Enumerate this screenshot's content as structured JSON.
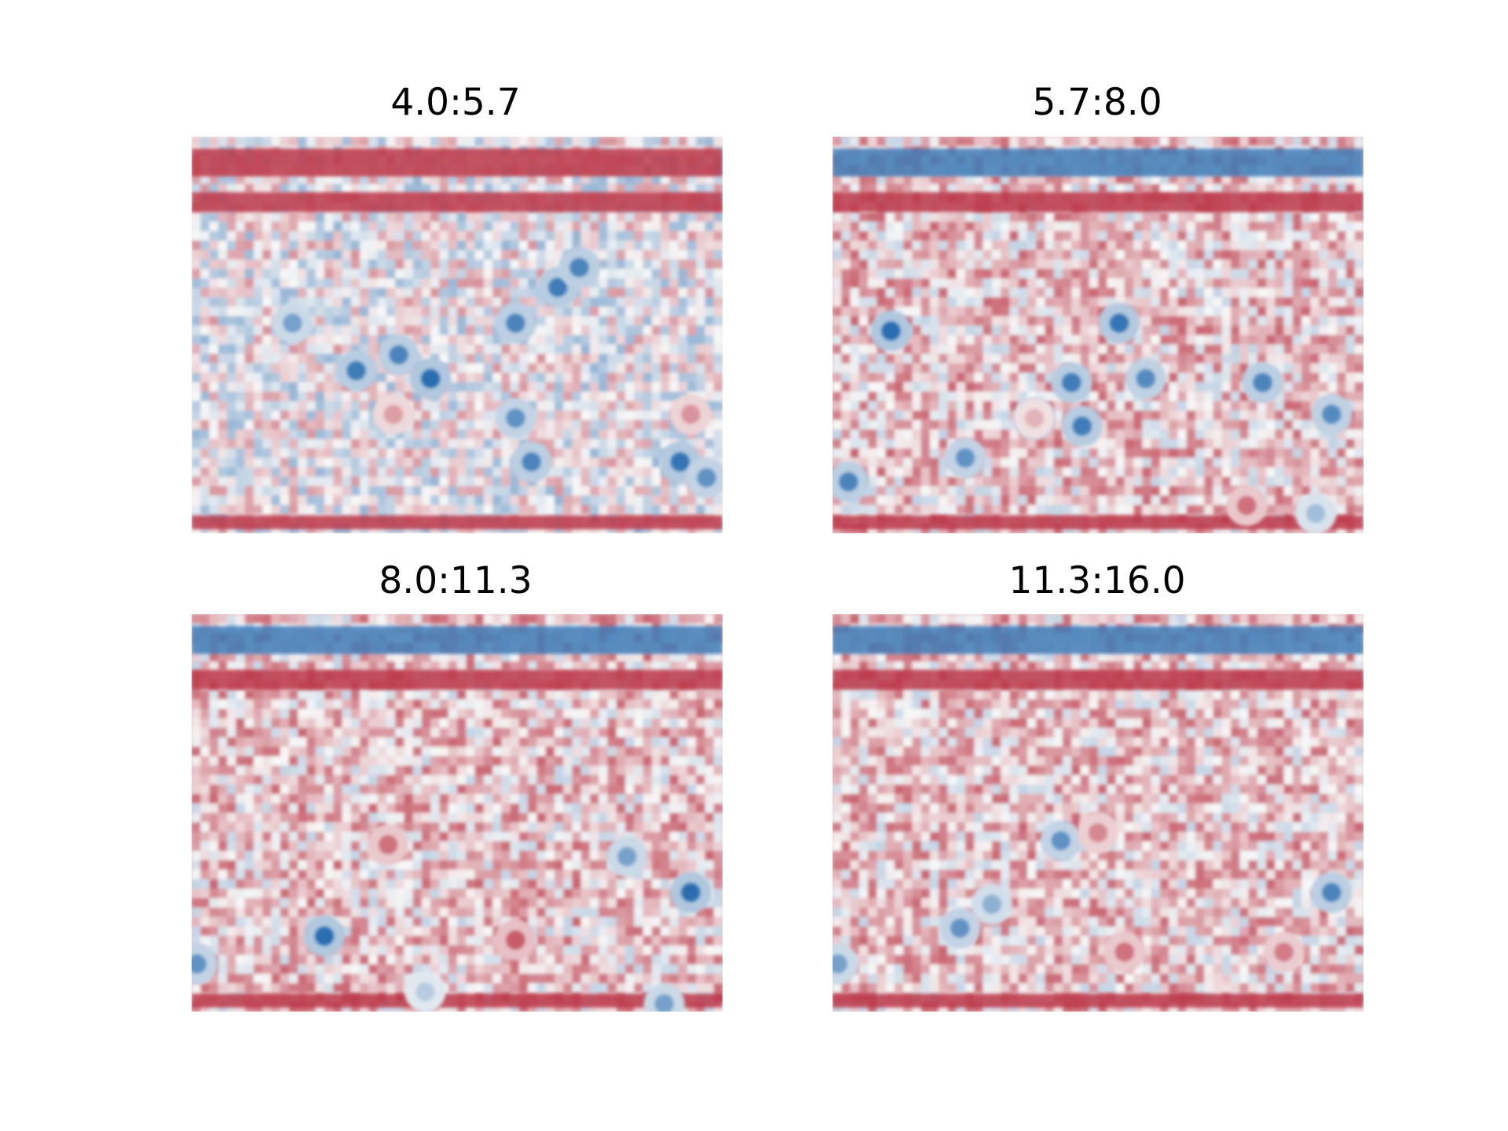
{
  "chart_data": [
    {
      "type": "heatmap",
      "title": "4.0:5.7",
      "colormap": "RdBu_r",
      "axes_visible": false,
      "grid": false,
      "colors": {
        "high": "#b2182b",
        "mid": "#f7f7f7",
        "low": "#2166ac"
      },
      "pattern": {
        "top_band": "red",
        "second_band": "red",
        "bottom_band": "red",
        "spots": [
          {
            "u": 0.31,
            "v": 0.59,
            "value": -0.85
          },
          {
            "u": 0.39,
            "v": 0.55,
            "value": -0.8
          },
          {
            "u": 0.45,
            "v": 0.61,
            "value": -0.95
          },
          {
            "u": 0.61,
            "v": 0.47,
            "value": -0.8
          },
          {
            "u": 0.69,
            "v": 0.38,
            "value": -0.85
          },
          {
            "u": 0.73,
            "v": 0.33,
            "value": -0.8
          },
          {
            "u": 0.61,
            "v": 0.71,
            "value": -0.7
          },
          {
            "u": 0.92,
            "v": 0.82,
            "value": -0.9
          },
          {
            "u": 0.19,
            "v": 0.47,
            "value": -0.6
          },
          {
            "u": 0.64,
            "v": 0.82,
            "value": -0.8
          },
          {
            "u": 0.97,
            "v": 0.86,
            "value": -0.7
          },
          {
            "u": 0.38,
            "v": 0.7,
            "value": 0.4
          },
          {
            "u": 0.94,
            "v": 0.7,
            "value": 0.45
          }
        ]
      }
    },
    {
      "type": "heatmap",
      "title": "5.7:8.0",
      "colormap": "RdBu_r",
      "axes_visible": false,
      "grid": false,
      "colors": {
        "high": "#b2182b",
        "mid": "#f7f7f7",
        "low": "#2166ac"
      },
      "pattern": {
        "top_band": "blue",
        "second_band": "red",
        "bottom_band": "red",
        "spots": [
          {
            "u": 0.11,
            "v": 0.49,
            "value": -0.95
          },
          {
            "u": 0.38,
            "v": 0.71,
            "value": -1.0
          },
          {
            "u": 0.45,
            "v": 0.62,
            "value": -0.85
          },
          {
            "u": 0.47,
            "v": 0.73,
            "value": -0.85
          },
          {
            "u": 0.54,
            "v": 0.47,
            "value": -0.9
          },
          {
            "u": 0.59,
            "v": 0.61,
            "value": -0.75
          },
          {
            "u": 0.81,
            "v": 0.62,
            "value": -0.8
          },
          {
            "u": 0.94,
            "v": 0.7,
            "value": -0.75
          },
          {
            "u": 0.25,
            "v": 0.81,
            "value": -0.7
          },
          {
            "u": 0.03,
            "v": 0.87,
            "value": -0.8
          },
          {
            "u": 0.91,
            "v": 0.95,
            "value": -0.4
          },
          {
            "u": 0.38,
            "v": 0.71,
            "value": 0.3
          },
          {
            "u": 0.78,
            "v": 0.93,
            "value": 0.6
          }
        ]
      }
    },
    {
      "type": "heatmap",
      "title": "8.0:11.3",
      "colormap": "RdBu_r",
      "axes_visible": false,
      "grid": false,
      "colors": {
        "high": "#b2182b",
        "mid": "#f7f7f7",
        "low": "#2166ac"
      },
      "pattern": {
        "top_band": "blue",
        "second_band": "red",
        "bottom_band": "red",
        "spots": [
          {
            "u": 0.25,
            "v": 0.81,
            "value": -0.95
          },
          {
            "u": 0.94,
            "v": 0.7,
            "value": -0.95
          },
          {
            "u": 0.82,
            "v": 0.61,
            "value": -0.6
          },
          {
            "u": 0.01,
            "v": 0.88,
            "value": -0.7
          },
          {
            "u": 0.44,
            "v": 0.95,
            "value": -0.3
          },
          {
            "u": 0.89,
            "v": 0.98,
            "value": -0.6
          },
          {
            "u": 0.37,
            "v": 0.58,
            "value": 0.6
          },
          {
            "u": 0.61,
            "v": 0.82,
            "value": 0.7
          }
        ]
      }
    },
    {
      "type": "heatmap",
      "title": "11.3:16.0",
      "colormap": "RdBu_r",
      "axes_visible": false,
      "grid": false,
      "colors": {
        "high": "#b2182b",
        "mid": "#f7f7f7",
        "low": "#2166ac"
      },
      "pattern": {
        "top_band": "blue",
        "second_band": "red",
        "bottom_band": "red",
        "spots": [
          {
            "u": 0.43,
            "v": 0.57,
            "value": -0.7
          },
          {
            "u": 0.94,
            "v": 0.7,
            "value": -0.8
          },
          {
            "u": 0.24,
            "v": 0.79,
            "value": -0.7
          },
          {
            "u": 0.01,
            "v": 0.88,
            "value": -0.6
          },
          {
            "u": 0.3,
            "v": 0.73,
            "value": -0.5
          },
          {
            "u": 0.5,
            "v": 0.55,
            "value": 0.5
          },
          {
            "u": 0.55,
            "v": 0.85,
            "value": 0.6
          },
          {
            "u": 0.85,
            "v": 0.85,
            "value": 0.55
          }
        ]
      }
    }
  ]
}
